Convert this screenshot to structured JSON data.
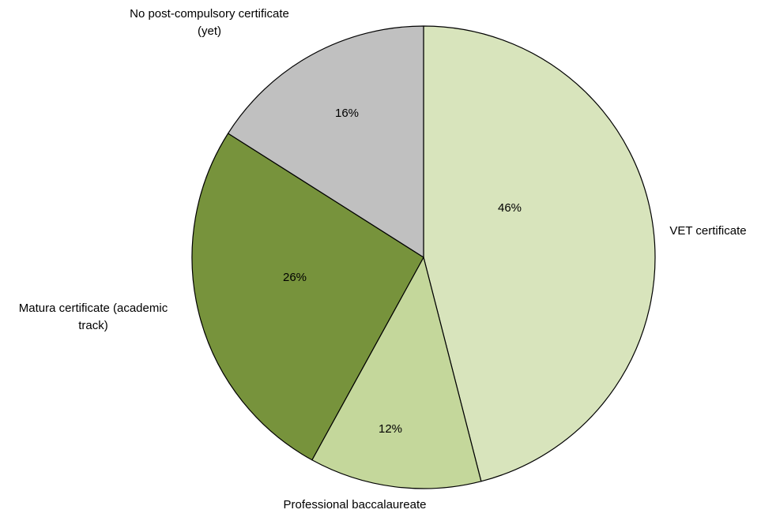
{
  "chart_data": {
    "type": "pie",
    "title": "",
    "slices": [
      {
        "label": "VET certificate",
        "label_lines": [
          "VET certificate"
        ],
        "value": 46,
        "display": "46%",
        "color": "#d8e4bc"
      },
      {
        "label": "Professional baccalaureate",
        "label_lines": [
          "Professional baccalaureate"
        ],
        "value": 12,
        "display": "12%",
        "color": "#c4d79b"
      },
      {
        "label": "Matura certificate (academic track)",
        "label_lines": [
          "Matura certificate (academic",
          "track)"
        ],
        "value": 26,
        "display": "26%",
        "color": "#77933c"
      },
      {
        "label": "No post-compulsory certificate (yet)",
        "label_lines": [
          "No post-compulsory certificate",
          "(yet)"
        ],
        "value": 16,
        "display": "16%",
        "color": "#c0c0c0"
      }
    ],
    "start_angle": "12 o'clock",
    "direction": "clockwise",
    "legend": "none",
    "stroke_color": "#000000"
  }
}
